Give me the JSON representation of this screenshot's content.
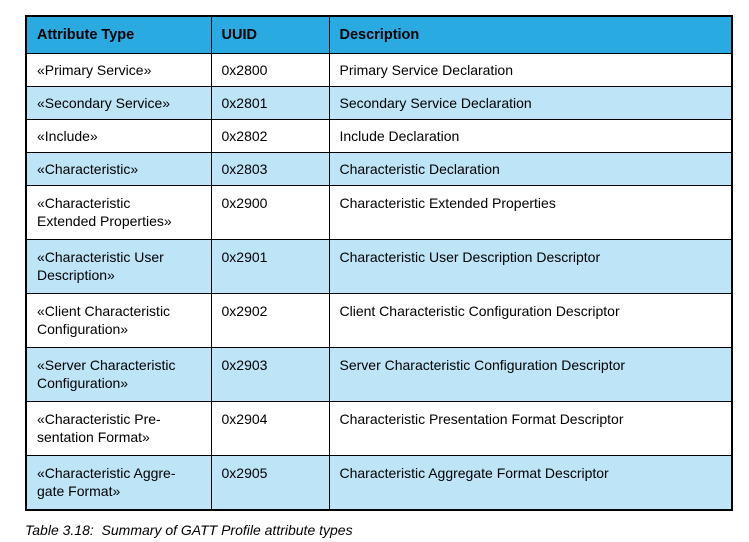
{
  "table": {
    "columns": [
      {
        "label": "Attribute Type"
      },
      {
        "label": "UUID"
      },
      {
        "label": "Description"
      }
    ],
    "rows": [
      {
        "attribute_type": "«Primary Service»",
        "uuid": "0x2800",
        "description": "Primary Service Declaration"
      },
      {
        "attribute_type": "«Secondary Service»",
        "uuid": "0x2801",
        "description": "Secondary Service Declaration"
      },
      {
        "attribute_type": "«Include»",
        "uuid": "0x2802",
        "description": "Include Declaration"
      },
      {
        "attribute_type": "«Characteristic»",
        "uuid": "0x2803",
        "description": "Characteristic Declaration"
      },
      {
        "attribute_type": "«Characteristic\nExtended Properties»",
        "uuid": "0x2900",
        "description": "Characteristic Extended Properties"
      },
      {
        "attribute_type": "«Characteristic User\nDescription»",
        "uuid": "0x2901",
        "description": "Characteristic User Description Descriptor"
      },
      {
        "attribute_type": "«Client Characteristic\nConfiguration»",
        "uuid": "0x2902",
        "description": "Client Characteristic Configuration Descriptor"
      },
      {
        "attribute_type": "«Server Characteristic\nConfiguration»",
        "uuid": "0x2903",
        "description": "Server Characteristic Configuration Descriptor"
      },
      {
        "attribute_type": "«Characteristic Pre-\nsentation Format»",
        "uuid": "0x2904",
        "description": "Characteristic Presentation Format Descriptor"
      },
      {
        "attribute_type": "«Characteristic Aggre-\ngate Format»",
        "uuid": "0x2905",
        "description": "Characteristic Aggregate Format Descriptor"
      }
    ]
  },
  "caption": "Table 3.18:  Summary of GATT Profile attribute types",
  "colors": {
    "header_bg": "#29ABE2",
    "row_alt_bg": "#BEE4F8",
    "border": "#000000"
  }
}
